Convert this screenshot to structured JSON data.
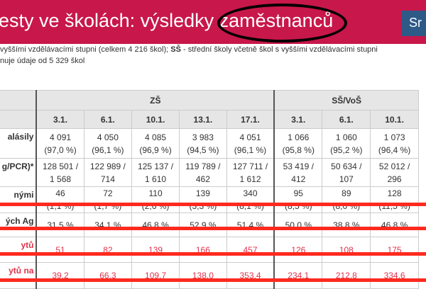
{
  "header": {
    "title": "esty ve školách: výsledky zaměstnanců",
    "button_label": "Sr",
    "bg": "#c8174a"
  },
  "subtitle": {
    "line1_pre": "vyššími vzdělávacími stupni (celkem 4 216 škol); ",
    "line1_bold": "SŠ",
    "line1_post": " - střední školy včetně škol s vyššími vzdělávacími stupni",
    "line2": "nuje údaje od 5 329 škol"
  },
  "table": {
    "groups": [
      "ZŠ",
      "SŠ/VoŠ"
    ],
    "dates": [
      "3.1.",
      "6.1.",
      "10.1.",
      "13.1.",
      "17.1.",
      "3.1.",
      "6.1.",
      "10.1."
    ],
    "rows": [
      {
        "label": "alásily",
        "cells": [
          "4 091\n(97,0 %)",
          "4 050\n(96,1 %)",
          "4 085\n(96,9 %)",
          "3 983\n(94,5 %)",
          "4 051\n(96,1 %)",
          "1 066\n(95,8 %)",
          "1 060\n(95,2 %)",
          "1 073\n(96,4 %)"
        ]
      },
      {
        "label": "g/PCR)*",
        "cells": [
          "128 501 /\n1 568",
          "122 989 /\n714",
          "125 137 /\n1 610",
          "119 789 /\n462",
          "127 711 /\n1 612",
          "53 419 /\n412",
          "50 634 /\n107",
          "52 012 /\n296"
        ]
      },
      {
        "label": "nými",
        "cells": [
          "46\n(1,1 %)",
          "72\n(1,7 %)",
          "110\n(2,6 %)",
          "139\n(3,3 %)",
          "340\n(8,1 %)",
          "95\n(8,5 %)",
          "89\n(8,0 %)",
          "128\n(11,5 %)"
        ]
      },
      {
        "label": "ých Ag",
        "cells": [
          "31,5 %",
          "34,1 %",
          "46,8 %",
          "52,9 %",
          "51,4 %",
          "50,0 %",
          "38,8 %",
          "46,8 %"
        ]
      },
      {
        "label": "ytů",
        "cells": [
          "51",
          "82",
          "139",
          "166",
          "457",
          "126",
          "108",
          "175"
        ]
      },
      {
        "label": "ytů na",
        "cells": [
          "39,2",
          "66,3",
          "109,7",
          "138,0",
          "353,4",
          "234,1",
          "212,8",
          "334,6"
        ]
      }
    ]
  }
}
